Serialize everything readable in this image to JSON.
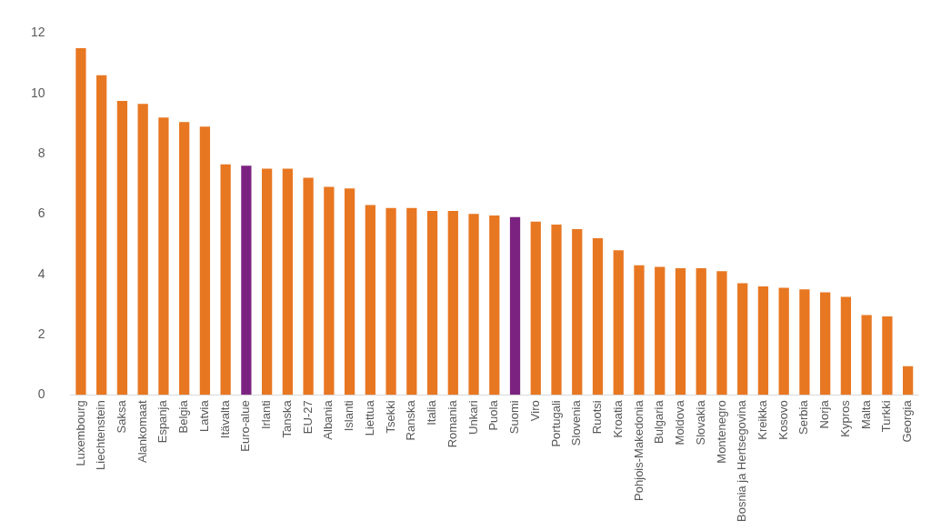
{
  "chart_data": {
    "type": "bar",
    "categories": [
      "Luxembourg",
      "Liechtenstein",
      "Saksa",
      "Alankomaat",
      "Espanja",
      "Belgia",
      "Latvia",
      "Itävalta",
      "Euro-alue",
      "Irlanti",
      "Tanska",
      "EU-27",
      "Albania",
      "Islanti",
      "Liettua",
      "Tsekki",
      "Ranska",
      "Italia",
      "Romania",
      "Unkari",
      "Puola",
      "Suomi",
      "Viro",
      "Portugali",
      "Slovenia",
      "Ruotsi",
      "Kroatia",
      "Pohjois-Makedonia",
      "Bulgaria",
      "Moldova",
      "Slovakia",
      "Montenegro",
      "Bosnia ja Hertsegovina",
      "Kreikka",
      "Kosovo",
      "Serbia",
      "Norja",
      "Kypros",
      "Malta",
      "Turkki",
      "Georgia"
    ],
    "values": [
      11.5,
      10.6,
      9.75,
      9.65,
      9.2,
      9.05,
      8.9,
      7.65,
      7.6,
      7.5,
      7.5,
      7.2,
      6.9,
      6.85,
      6.3,
      6.2,
      6.2,
      6.1,
      6.1,
      6.0,
      5.95,
      5.9,
      5.75,
      5.65,
      5.5,
      5.2,
      4.8,
      4.3,
      4.25,
      4.2,
      4.2,
      4.1,
      3.7,
      3.6,
      3.55,
      3.5,
      3.4,
      3.25,
      2.65,
      2.6,
      0.95
    ],
    "colors": [
      "#e87722",
      "#e87722",
      "#e87722",
      "#e87722",
      "#e87722",
      "#e87722",
      "#e87722",
      "#e87722",
      "#7b2281",
      "#e87722",
      "#e87722",
      "#e87722",
      "#e87722",
      "#e87722",
      "#e87722",
      "#e87722",
      "#e87722",
      "#e87722",
      "#e87722",
      "#e87722",
      "#e87722",
      "#7b2281",
      "#e87722",
      "#e87722",
      "#e87722",
      "#e87722",
      "#e87722",
      "#e87722",
      "#e87722",
      "#e87722",
      "#e87722",
      "#e87722",
      "#e87722",
      "#e87722",
      "#e87722",
      "#e87722",
      "#e87722",
      "#e87722",
      "#e87722",
      "#e87722",
      "#e87722"
    ],
    "ylim": [
      0,
      12
    ],
    "yticks": [
      0,
      2,
      4,
      6,
      8,
      10,
      12
    ],
    "grid": false
  }
}
